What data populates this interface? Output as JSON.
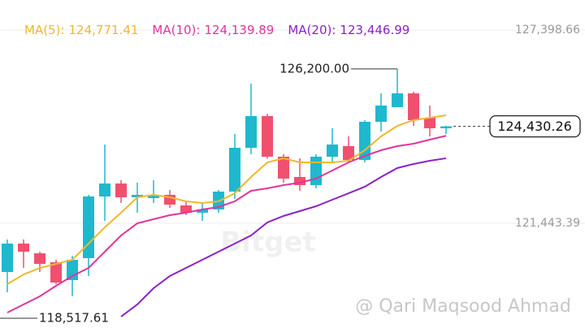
{
  "chart_data": {
    "type": "candlestick",
    "ylim": [
      118216,
      128324
    ],
    "yticks": [
      {
        "value": 127398.66,
        "label": "127,398.66"
      },
      {
        "value": 121443.39,
        "label": "121,443.39"
      }
    ],
    "grid": true,
    "up_color": "#1fb8cf",
    "down_color": "#f0506e",
    "open": [
      119942,
      120818,
      120518,
      120243,
      119692,
      120368,
      122269,
      122669,
      122244,
      122219,
      122319,
      121994,
      121769,
      121869,
      122419,
      123770,
      124746,
      123495,
      122870,
      122619,
      123495,
      123820,
      123395,
      124571,
      125021,
      125447,
      124696,
      124371
    ],
    "close": [
      120818,
      120568,
      120193,
      119617,
      120318,
      122269,
      122669,
      122244,
      122319,
      122319,
      122019,
      121769,
      121869,
      122419,
      123770,
      124746,
      123495,
      122820,
      122619,
      123495,
      123870,
      123395,
      124571,
      125071,
      125447,
      124621,
      124371,
      124430.26
    ],
    "high": [
      120943,
      120943,
      120568,
      120318,
      120443,
      122319,
      123870,
      122770,
      122694,
      122770,
      122469,
      122119,
      122069,
      122469,
      124196,
      125747,
      124821,
      123570,
      123445,
      123570,
      124371,
      124121,
      124621,
      125447,
      126200,
      125497,
      125071,
      124450
    ],
    "low": [
      119317,
      120067,
      119942,
      119567,
      119192,
      119817,
      121519,
      122069,
      121769,
      122069,
      121919,
      121694,
      121519,
      121769,
      122194,
      123570,
      123445,
      122694,
      122444,
      122519,
      123320,
      123320,
      123320,
      124271,
      125021,
      124446,
      124121,
      124196
    ],
    "series": [
      {
        "name": "MA(5):",
        "value_label": "124,771.41",
        "color": "#f0b82d",
        "values": [
          119567,
          119867,
          120067,
          120193,
          120318,
          120818,
          121318,
          121769,
          122244,
          122319,
          122244,
          122119,
          122069,
          122119,
          122369,
          122870,
          123320,
          123445,
          123320,
          123320,
          123320,
          123370,
          123695,
          124121,
          124446,
          124621,
          124696,
          124771.41
        ]
      },
      {
        "name": "MA(10):",
        "value_label": "124,139.89",
        "color": "#e0359c",
        "values": [
          118691,
          118942,
          119192,
          119517,
          119817,
          120067,
          120568,
          121068,
          121443,
          121569,
          121694,
          121769,
          121869,
          121944,
          122119,
          122444,
          122519,
          122619,
          122694,
          122820,
          123070,
          123320,
          123520,
          123695,
          123820,
          123895,
          124021,
          124139.89
        ]
      },
      {
        "name": "MA(20):",
        "value_label": "123,446.99",
        "color": "#8a22c9",
        "values": [
          null,
          null,
          null,
          null,
          null,
          null,
          null,
          118566,
          118942,
          119442,
          119817,
          120067,
          120318,
          120568,
          120818,
          121068,
          121469,
          121669,
          121819,
          121969,
          122169,
          122369,
          122570,
          122870,
          123145,
          123270,
          123370,
          123446.99
        ]
      }
    ],
    "annotations": {
      "high": {
        "value": 126200,
        "label": "126,200.00"
      },
      "low": {
        "value": 118517.61,
        "label": "118,517.61"
      },
      "current": {
        "value": 124430.26,
        "label": "124,430.26"
      }
    },
    "watermarks": [
      "Bitget",
      "@ Qari Maqsood Ahmad"
    ]
  }
}
